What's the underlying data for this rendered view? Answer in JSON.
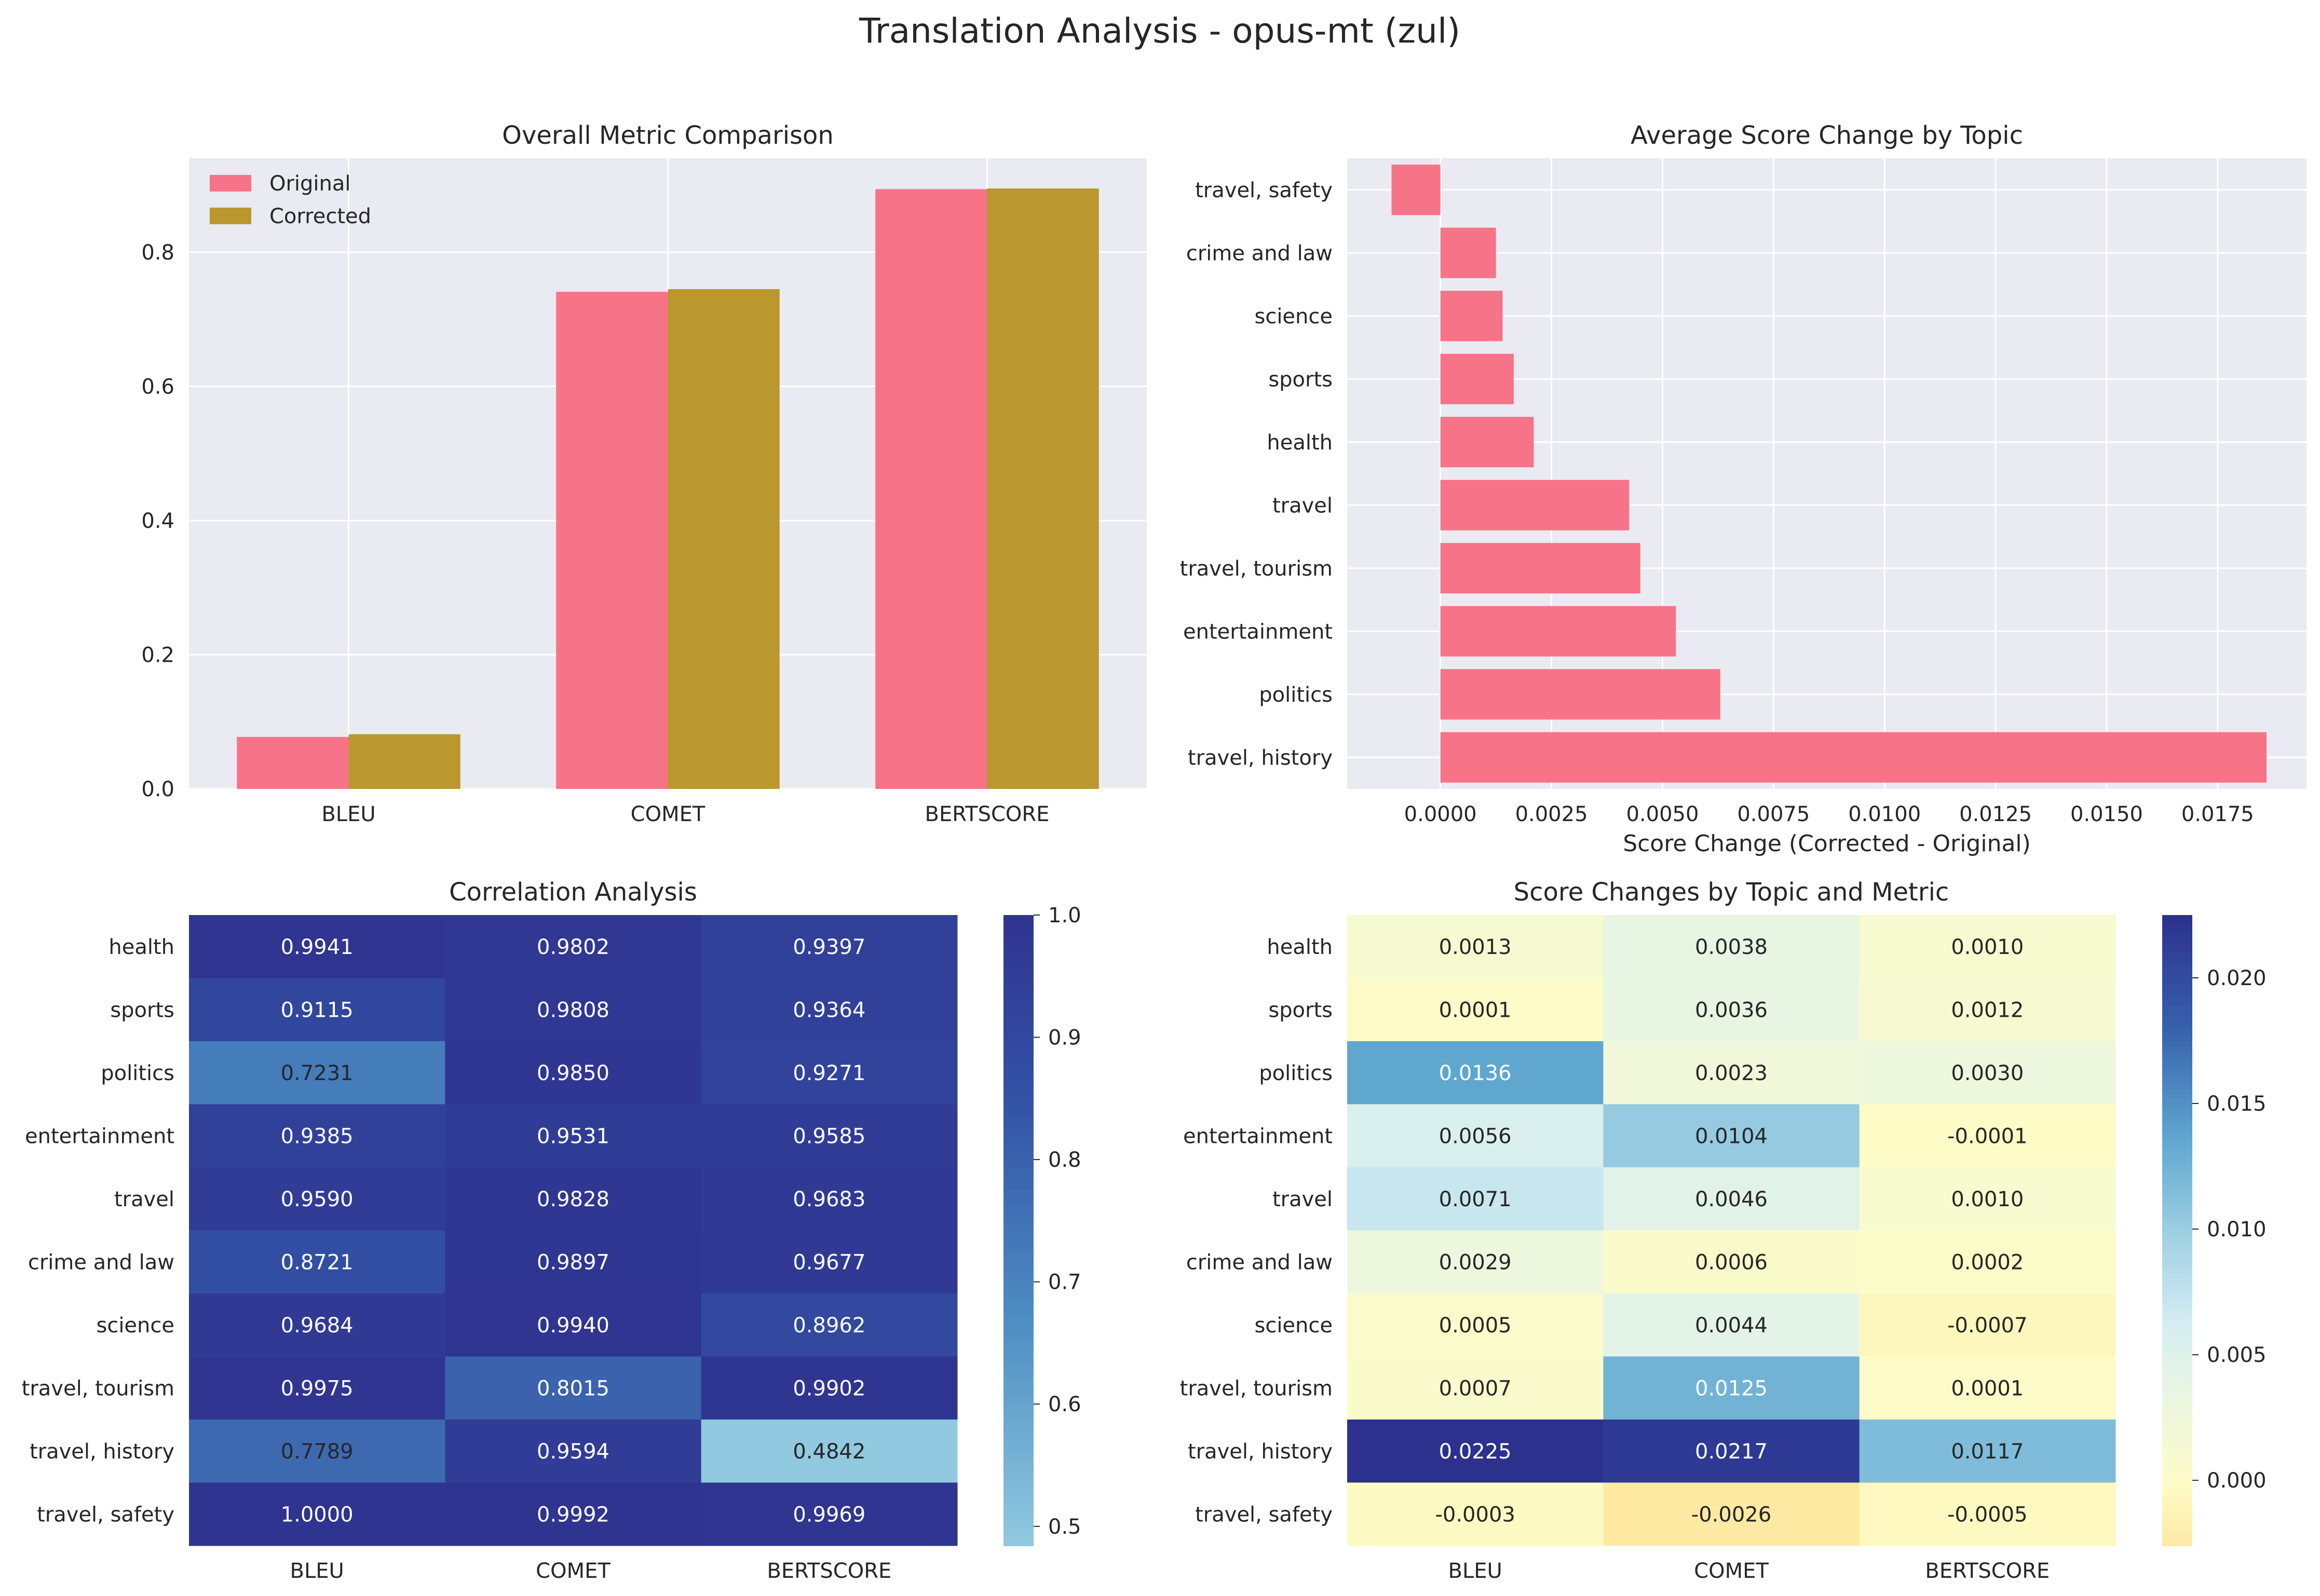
{
  "figure": {
    "title": "Translation Analysis - opus-mt (zul)"
  },
  "colors": {
    "original": "#f67388",
    "corrected": "#ba972f",
    "axes_bg": "#eaeaf2",
    "grid": "#ffffff"
  },
  "chart_data": [
    {
      "type": "bar",
      "title": "Overall Metric Comparison",
      "categories": [
        "BLEU",
        "COMET",
        "BERTSCORE"
      ],
      "series": [
        {
          "name": "Original",
          "values": [
            0.0775,
            0.741,
            0.894
          ]
        },
        {
          "name": "Corrected",
          "values": [
            0.0815,
            0.745,
            0.895
          ]
        }
      ],
      "xlabel": "",
      "ylabel": "",
      "ylim": [
        0,
        0.94
      ],
      "yticks": [
        "0.0",
        "0.2",
        "0.4",
        "0.6",
        "0.8"
      ],
      "legend": "top-left"
    },
    {
      "type": "bar",
      "orientation": "horizontal",
      "title": "Average Score Change by Topic",
      "categories": [
        "travel, safety",
        "crime and law",
        "science",
        "sports",
        "health",
        "travel",
        "travel, tourism",
        "entertainment",
        "politics",
        "travel, history"
      ],
      "values": [
        -0.0011,
        0.00125,
        0.0014,
        0.00165,
        0.0021,
        0.00425,
        0.0045,
        0.0053,
        0.0063,
        0.0186
      ],
      "xlabel": "Score Change (Corrected - Original)",
      "xlim": [
        -0.0021,
        0.0195
      ],
      "xticks": [
        "0.0000",
        "0.0025",
        "0.0050",
        "0.0075",
        "0.0100",
        "0.0125",
        "0.0150",
        "0.0175"
      ]
    },
    {
      "type": "heatmap",
      "title": "Correlation Analysis",
      "rows": [
        "health",
        "sports",
        "politics",
        "entertainment",
        "travel",
        "crime and law",
        "science",
        "travel, tourism",
        "travel, history",
        "travel, safety"
      ],
      "columns": [
        "BLEU",
        "COMET",
        "BERTSCORE"
      ],
      "values": [
        [
          0.9941,
          0.9802,
          0.9397
        ],
        [
          0.9115,
          0.9808,
          0.9364
        ],
        [
          0.7231,
          0.985,
          0.9271
        ],
        [
          0.9385,
          0.9531,
          0.9585
        ],
        [
          0.959,
          0.9828,
          0.9683
        ],
        [
          0.8721,
          0.9897,
          0.9677
        ],
        [
          0.9684,
          0.994,
          0.8962
        ],
        [
          0.9975,
          0.8015,
          0.9902
        ],
        [
          0.7789,
          0.9594,
          0.4842
        ],
        [
          1.0,
          0.9992,
          0.9969
        ]
      ],
      "labels": [
        [
          "0.9941",
          "0.9802",
          "0.9397"
        ],
        [
          "0.9115",
          "0.9808",
          "0.9364"
        ],
        [
          "0.7231",
          "0.9850",
          "0.9271"
        ],
        [
          "0.9385",
          "0.9531",
          "0.9585"
        ],
        [
          "0.9590",
          "0.9828",
          "0.9683"
        ],
        [
          "0.8721",
          "0.9897",
          "0.9677"
        ],
        [
          "0.9684",
          "0.9940",
          "0.8962"
        ],
        [
          "0.9975",
          "0.8015",
          "0.9902"
        ],
        [
          "0.7789",
          "0.9594",
          "0.4842"
        ],
        [
          "1.0000",
          "0.9992",
          "0.9969"
        ]
      ],
      "colormap": "light blue to dark blue",
      "vmin": 0.4842,
      "vmax": 1.0,
      "colorbar_ticks": [
        {
          "value": 0.5,
          "label": "0.5"
        },
        {
          "value": 0.6,
          "label": "0.6"
        },
        {
          "value": 0.7,
          "label": "0.7"
        },
        {
          "value": 0.8,
          "label": "0.8"
        },
        {
          "value": 0.9,
          "label": "0.9"
        },
        {
          "value": 1.0,
          "label": "1.0"
        }
      ]
    },
    {
      "type": "heatmap",
      "title": "Score Changes by Topic and Metric",
      "rows": [
        "health",
        "sports",
        "politics",
        "entertainment",
        "travel",
        "crime and law",
        "science",
        "travel, tourism",
        "travel, history",
        "travel, safety"
      ],
      "columns": [
        "BLEU",
        "COMET",
        "BERTSCORE"
      ],
      "values": [
        [
          0.0013,
          0.0038,
          0.001
        ],
        [
          0.0001,
          0.0036,
          0.0012
        ],
        [
          0.0136,
          0.0023,
          0.003
        ],
        [
          0.0056,
          0.0104,
          -0.0001
        ],
        [
          0.0071,
          0.0046,
          0.001
        ],
        [
          0.0029,
          0.0006,
          0.0002
        ],
        [
          0.0005,
          0.0044,
          -0.0007
        ],
        [
          0.0007,
          0.0125,
          0.0001
        ],
        [
          0.0225,
          0.0217,
          0.0117
        ],
        [
          -0.0003,
          -0.0026,
          -0.0005
        ]
      ],
      "labels": [
        [
          "0.0013",
          "0.0038",
          "0.0010"
        ],
        [
          "0.0001",
          "0.0036",
          "0.0012"
        ],
        [
          "0.0136",
          "0.0023",
          "0.0030"
        ],
        [
          "0.0056",
          "0.0104",
          "-0.0001"
        ],
        [
          "0.0071",
          "0.0046",
          "0.0010"
        ],
        [
          "0.0029",
          "0.0006",
          "0.0002"
        ],
        [
          "0.0005",
          "0.0044",
          "-0.0007"
        ],
        [
          "0.0007",
          "0.0125",
          "0.0001"
        ],
        [
          "0.0225",
          "0.0217",
          "0.0117"
        ],
        [
          "-0.0003",
          "-0.0026",
          "-0.0005"
        ]
      ],
      "colormap": "yellow-green-blue",
      "vmin": -0.0026,
      "vmax": 0.0225,
      "colorbar_ticks": [
        {
          "value": 0.0,
          "label": "0.000"
        },
        {
          "value": 0.005,
          "label": "0.005"
        },
        {
          "value": 0.01,
          "label": "0.010"
        },
        {
          "value": 0.015,
          "label": "0.015"
        },
        {
          "value": 0.02,
          "label": "0.020"
        }
      ]
    }
  ]
}
